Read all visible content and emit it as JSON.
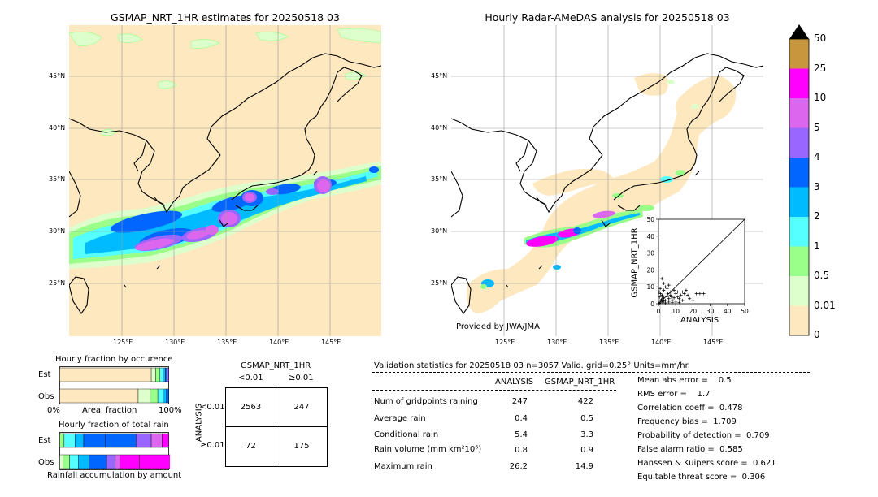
{
  "left_map": {
    "title": "GSMAP_NRT_1HR estimates for 20250518 03",
    "lat_labels": [
      "45°N",
      "40°N",
      "35°N",
      "30°N",
      "25°N"
    ],
    "lon_labels": [
      "125°E",
      "130°E",
      "135°E",
      "140°E",
      "145°E"
    ]
  },
  "right_map": {
    "title": "Hourly Radar-AMeDAS analysis for 20250518 03",
    "lat_labels": [
      "45°N",
      "40°N",
      "35°N",
      "30°N",
      "25°N"
    ],
    "lon_labels": [
      "125°E",
      "130°E",
      "135°E",
      "140°E",
      "145°E"
    ],
    "credit": "Provided by JWA/JMA"
  },
  "colorbar": {
    "labels": [
      "50",
      "25",
      "10",
      "5",
      "4",
      "3",
      "2",
      "1",
      "0.5",
      "0.01",
      "0"
    ],
    "colors": [
      "#c8963c",
      "#ff00ff",
      "#dd66ee",
      "#9966ff",
      "#0066ff",
      "#00bbff",
      "#55ffff",
      "#99ff88",
      "#ddffcc",
      "#fde8c0"
    ]
  },
  "chart_data": [
    {
      "type": "scatter",
      "title": "",
      "xlabel": "ANALYSIS",
      "ylabel": "GSMAP_NRT_1HR",
      "xlim": [
        0,
        50
      ],
      "ylim": [
        0,
        50
      ],
      "xticks": [
        "0",
        "10",
        "20",
        "30",
        "40",
        "50"
      ],
      "yticks": [
        "0",
        "10",
        "20",
        "30",
        "40",
        "50"
      ],
      "points": [
        [
          0.5,
          0.3
        ],
        [
          1,
          0.8
        ],
        [
          1.5,
          2
        ],
        [
          2,
          1
        ],
        [
          2.5,
          3
        ],
        [
          3,
          1.5
        ],
        [
          0.8,
          4
        ],
        [
          1.2,
          6
        ],
        [
          2,
          5
        ],
        [
          3,
          3.5
        ],
        [
          4,
          2
        ],
        [
          5,
          4
        ],
        [
          6,
          3
        ],
        [
          7,
          5
        ],
        [
          8,
          2
        ],
        [
          9,
          3.5
        ],
        [
          10,
          6
        ],
        [
          11,
          4
        ],
        [
          12,
          3
        ],
        [
          13,
          5
        ],
        [
          14,
          7
        ],
        [
          15,
          6
        ],
        [
          16,
          8
        ],
        [
          17,
          5
        ],
        [
          18,
          3
        ],
        [
          20,
          2
        ],
        [
          22,
          6
        ],
        [
          24,
          6
        ],
        [
          26.2,
          6
        ],
        [
          4,
          10
        ],
        [
          3,
          12
        ],
        [
          5,
          9
        ],
        [
          6,
          11
        ],
        [
          2,
          14.9
        ],
        [
          7,
          7
        ],
        [
          9,
          8
        ],
        [
          1,
          9
        ],
        [
          0.5,
          7
        ],
        [
          3,
          8
        ],
        [
          10,
          1
        ],
        [
          12,
          0.8
        ],
        [
          14,
          2
        ],
        [
          4,
          0.5
        ],
        [
          6,
          1
        ],
        [
          8,
          0.7
        ],
        [
          1.8,
          2.5
        ],
        [
          2.2,
          4.5
        ],
        [
          5.5,
          6
        ],
        [
          7.5,
          4
        ],
        [
          11,
          7
        ]
      ]
    },
    {
      "type": "bar",
      "title": "Hourly fraction by occurence",
      "categories": [
        "Est",
        "Obs"
      ],
      "xlabel": "Areal fraction",
      "xticks": [
        "0%",
        "100%"
      ],
      "stacked": true
    },
    {
      "type": "bar",
      "title": "Hourly fraction of total rain",
      "categories": [
        "Est",
        "Obs"
      ],
      "xlabel": "Rainfall accumulation by amount",
      "stacked": true
    }
  ],
  "occurrence_bars": {
    "est": [
      0.84,
      0.04,
      0.04,
      0.03,
      0.02,
      0.015,
      0.015
    ],
    "obs": [
      0.72,
      0.11,
      0.07,
      0.05,
      0.03,
      0.02
    ]
  },
  "rain_bars": {
    "est": [
      0.04,
      0.1,
      0.08,
      0.2,
      0.28,
      0.14,
      0.1,
      0.06
    ],
    "obs": [
      0.03,
      0.06,
      0.08,
      0.1,
      0.16,
      0.08,
      0.04,
      0.18,
      0.37
    ]
  },
  "contingency": {
    "col_title": "GSMAP_NRT_1HR",
    "col_headers": [
      "<0.01",
      "≥0.01"
    ],
    "row_title": "ANALYSIS",
    "row_headers": [
      "<0.01",
      "≥0.01"
    ],
    "cells": [
      "2563",
      "247",
      "72",
      "175"
    ]
  },
  "validation": {
    "header": "Validation statistics for 20250518 03  n=3057 Valid. grid=0.25° Units=mm/hr.",
    "col_analysis": "ANALYSIS",
    "col_gsmap": "GSMAP_NRT_1HR",
    "rows": [
      {
        "label": "Num of gridpoints raining",
        "analysis": "247",
        "gsmap": "422"
      },
      {
        "label": "Average rain",
        "analysis": "0.4",
        "gsmap": "0.5"
      },
      {
        "label": "Conditional rain",
        "analysis": "5.4",
        "gsmap": "3.3"
      },
      {
        "label": "Rain volume (mm km²10⁶)",
        "analysis": "0.8",
        "gsmap": "0.9"
      },
      {
        "label": "Maximum rain",
        "analysis": "26.2",
        "gsmap": "14.9"
      }
    ],
    "scores": [
      "Mean abs error =    0.5",
      "RMS error =    1.7",
      "Correlation coeff =  0.478",
      "Frequency bias =  1.709",
      "Probability of detection =  0.709",
      "False alarm ratio =  0.585",
      "Hanssen & Kuipers score =  0.621",
      "Equitable threat score =  0.306"
    ]
  }
}
